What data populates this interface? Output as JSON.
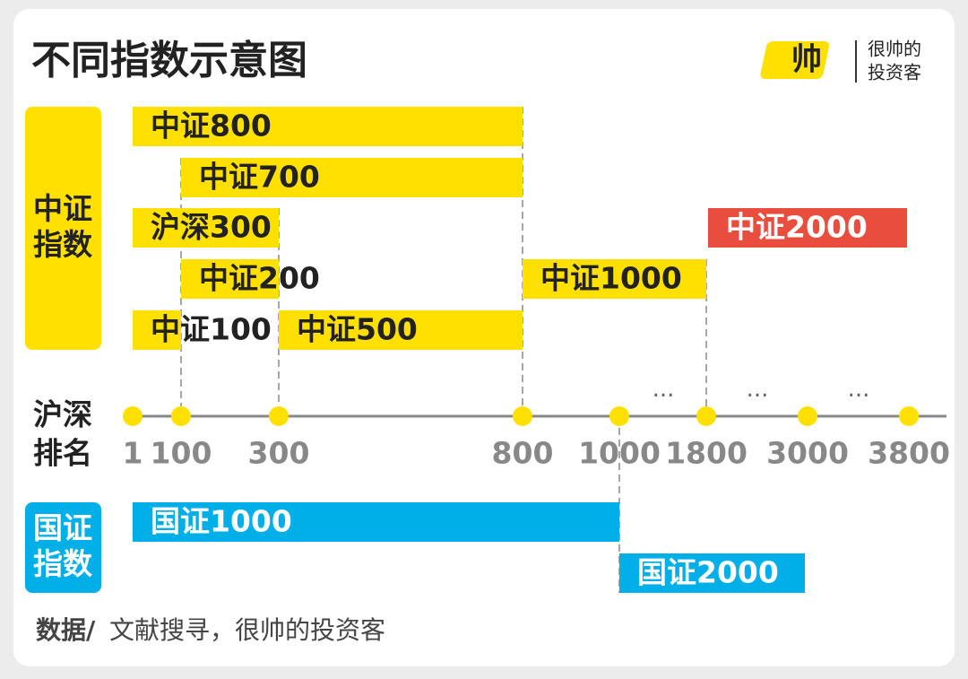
{
  "header": {
    "title": "不同指数示意图",
    "logo_mark": "帅",
    "logo_text": [
      "很帅的",
      "投资客"
    ]
  },
  "groups": [
    {
      "lines": [
        "中证",
        "指数"
      ]
    },
    {
      "lines": [
        "国证",
        "指数"
      ]
    }
  ],
  "axis": {
    "lines": [
      "沪深",
      "排名"
    ],
    "ticks": [
      "1",
      "100",
      "300",
      "800",
      "1000",
      "1800",
      "3000",
      "3800"
    ],
    "ellipsis": [
      "···",
      "···",
      "···"
    ]
  },
  "bars": [
    "中证800",
    "中证700",
    "沪深300",
    "中证200",
    "中证100",
    "中证500",
    "中证1000",
    "中证2000",
    "国证1000",
    "国证2000"
  ],
  "footer": {
    "source_label": "数据/",
    "source_text": "文献搜寻，很帅的投资客"
  }
}
